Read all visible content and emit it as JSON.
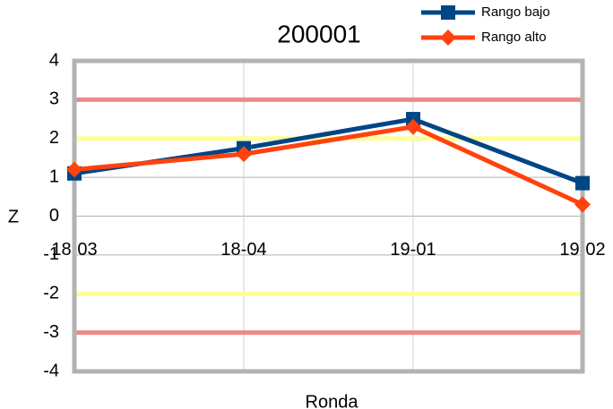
{
  "chart_data": {
    "type": "line",
    "title": "200001",
    "x_label": "Ronda",
    "y_label": "Z",
    "categories": [
      "18-03",
      "18-04",
      "19-01",
      "19-02"
    ],
    "series": [
      {
        "name": "Rango bajo",
        "color": "#004586",
        "marker": "square",
        "values": [
          1.1,
          1.75,
          2.5,
          0.85
        ]
      },
      {
        "name": "Rango alto",
        "color": "#ff420e",
        "marker": "diamond",
        "values": [
          1.2,
          1.6,
          2.3,
          0.3
        ]
      }
    ],
    "reference_lines": [
      {
        "value": 3,
        "color": "#ee8a8a"
      },
      {
        "value": 2,
        "color": "#ffff99"
      },
      {
        "value": -2,
        "color": "#ffff99"
      },
      {
        "value": -3,
        "color": "#ee8a8a"
      }
    ],
    "ylim": [
      -4,
      4
    ],
    "yticks": [
      -4,
      -3,
      -2,
      -1,
      0,
      1,
      2,
      3,
      4
    ],
    "grid": true,
    "legend": "top-right"
  }
}
